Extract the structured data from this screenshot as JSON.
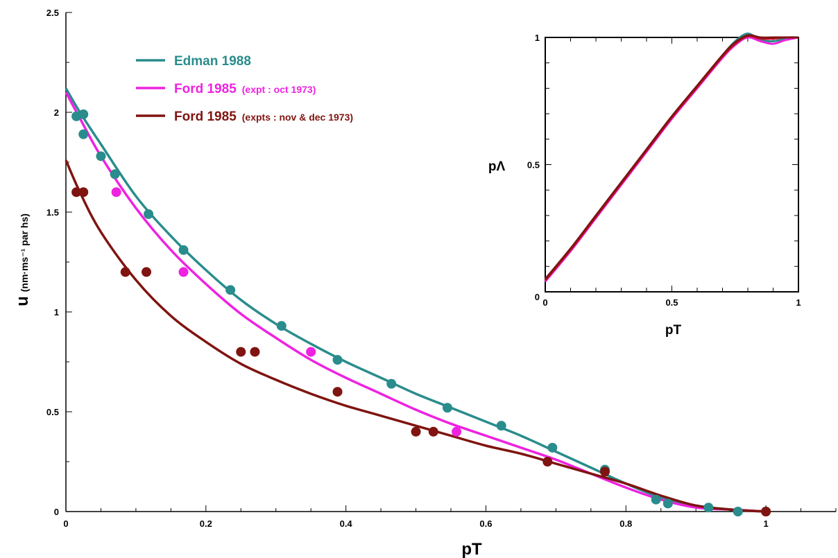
{
  "colors": {
    "edman": "#2a8c8c",
    "ford_oct": "#ee22e0",
    "ford_novdec": "#7f1410",
    "inset_red": "#c8102e",
    "axis": "#000000"
  },
  "chart_data": [
    {
      "type": "scatter",
      "role": "main",
      "xlabel": "pT",
      "ylabel_main": "u",
      "ylabel_units": "(nm·ms⁻¹ par hs)",
      "xlim": [
        0,
        1.1
      ],
      "ylim": [
        0,
        2.5
      ],
      "x_ticks": [
        {
          "value": 0,
          "label": "0"
        },
        {
          "value": 0.2,
          "label": "0.2"
        },
        {
          "value": 0.4,
          "label": "0.4"
        },
        {
          "value": 0.6,
          "label": "0.6"
        },
        {
          "value": 0.8,
          "label": "0.8"
        },
        {
          "value": 1.0,
          "label": "1"
        }
      ],
      "y_ticks": [
        {
          "value": 0,
          "label": "0"
        },
        {
          "value": 0.5,
          "label": "0.5"
        },
        {
          "value": 1.0,
          "label": "1"
        },
        {
          "value": 1.5,
          "label": "1.5"
        },
        {
          "value": 2.0,
          "label": "2"
        },
        {
          "value": 2.5,
          "label": "2.5"
        }
      ],
      "legend": {
        "placement": "top-left",
        "entries": [
          {
            "label": "Edman 1988",
            "note": "",
            "color_key": "edman"
          },
          {
            "label": "Ford 1985",
            "note": "(expt : oct 1973)",
            "color_key": "ford_oct"
          },
          {
            "label": "Ford 1985",
            "note": "(expts : nov & dec 1973)",
            "color_key": "ford_novdec"
          }
        ]
      },
      "series": [
        {
          "name": "Edman 1988",
          "color_key": "edman",
          "curve": {
            "x": [
              0,
              0.02,
              0.05,
              0.1,
              0.15,
              0.2,
              0.25,
              0.3,
              0.35,
              0.4,
              0.45,
              0.5,
              0.55,
              0.6,
              0.65,
              0.7,
              0.75,
              0.8,
              0.85,
              0.9,
              0.95,
              1.0
            ],
            "y": [
              2.12,
              2.0,
              1.84,
              1.58,
              1.38,
              1.21,
              1.06,
              0.94,
              0.84,
              0.75,
              0.67,
              0.59,
              0.52,
              0.45,
              0.38,
              0.3,
              0.22,
              0.14,
              0.07,
              0.03,
              0.01,
              0.0
            ]
          },
          "points": {
            "x": [
              0.015,
              0.025,
              0.025,
              0.05,
              0.07,
              0.118,
              0.168,
              0.235,
              0.308,
              0.388,
              0.465,
              0.545,
              0.622,
              0.695,
              0.77,
              0.843,
              0.86,
              0.918,
              0.96,
              1.0
            ],
            "y": [
              1.98,
              1.99,
              1.89,
              1.78,
              1.69,
              1.49,
              1.31,
              1.11,
              0.93,
              0.76,
              0.64,
              0.52,
              0.43,
              0.32,
              0.21,
              0.06,
              0.04,
              0.02,
              0.0,
              0.0
            ]
          }
        },
        {
          "name": "Ford 1985",
          "color_key": "ford_oct",
          "curve": {
            "x": [
              0,
              0.02,
              0.05,
              0.1,
              0.15,
              0.2,
              0.25,
              0.3,
              0.35,
              0.4,
              0.45,
              0.5,
              0.55,
              0.6,
              0.65,
              0.7,
              0.75,
              0.8,
              0.85,
              0.9,
              0.95,
              1.0
            ],
            "y": [
              2.1,
              1.97,
              1.78,
              1.52,
              1.31,
              1.14,
              0.99,
              0.87,
              0.76,
              0.67,
              0.59,
              0.51,
              0.44,
              0.38,
              0.32,
              0.26,
              0.19,
              0.12,
              0.06,
              0.02,
              0.01,
              0.0
            ]
          },
          "points": {
            "x": [
              0.072,
              0.168,
              0.35,
              0.558
            ],
            "y": [
              1.6,
              1.2,
              0.8,
              0.4
            ]
          }
        },
        {
          "name": "Ford 1985",
          "color_key": "ford_novdec",
          "curve": {
            "x": [
              0,
              0.02,
              0.05,
              0.1,
              0.15,
              0.2,
              0.25,
              0.3,
              0.35,
              0.4,
              0.45,
              0.5,
              0.55,
              0.6,
              0.65,
              0.7,
              0.75,
              0.8,
              0.85,
              0.9,
              0.95,
              1.0
            ],
            "y": [
              1.76,
              1.6,
              1.4,
              1.16,
              0.98,
              0.85,
              0.74,
              0.66,
              0.59,
              0.53,
              0.48,
              0.43,
              0.38,
              0.33,
              0.29,
              0.24,
              0.19,
              0.14,
              0.08,
              0.03,
              0.01,
              0.0
            ]
          },
          "points": {
            "x": [
              0.015,
              0.025,
              0.085,
              0.115,
              0.25,
              0.27,
              0.388,
              0.5,
              0.525,
              0.688,
              0.77,
              1.0
            ],
            "y": [
              1.6,
              1.6,
              1.2,
              1.2,
              0.8,
              0.8,
              0.6,
              0.4,
              0.4,
              0.25,
              0.2,
              0.0
            ]
          }
        }
      ]
    },
    {
      "type": "line",
      "role": "inset",
      "xlabel": "pT",
      "ylabel": "pΛ",
      "xlim": [
        0,
        1
      ],
      "ylim": [
        0,
        1
      ],
      "x_tick_labels": [
        {
          "value": 0,
          "label": "0"
        },
        {
          "value": 0.5,
          "label": "0.5"
        },
        {
          "value": 1,
          "label": "1"
        }
      ],
      "y_tick_labels": [
        {
          "value": 0,
          "label": "0"
        },
        {
          "value": 0.5,
          "label": "0.5"
        },
        {
          "value": 1,
          "label": "1"
        }
      ],
      "series": [
        {
          "color_key": "edman",
          "x": [
            0,
            0.1,
            0.2,
            0.3,
            0.4,
            0.5,
            0.6,
            0.7,
            0.75,
            0.8,
            0.85,
            0.9,
            0.95,
            1.0
          ],
          "y": [
            0.05,
            0.17,
            0.3,
            0.43,
            0.56,
            0.69,
            0.81,
            0.93,
            0.985,
            1.015,
            0.99,
            0.985,
            0.995,
            1.0
          ]
        },
        {
          "color_key": "ford_oct",
          "x": [
            0,
            0.1,
            0.2,
            0.3,
            0.4,
            0.5,
            0.6,
            0.7,
            0.75,
            0.8,
            0.85,
            0.9,
            0.95,
            1.0
          ],
          "y": [
            0.04,
            0.16,
            0.29,
            0.42,
            0.55,
            0.68,
            0.8,
            0.92,
            0.97,
            1.0,
            0.985,
            0.975,
            0.99,
            1.0
          ]
        },
        {
          "color_key": "inset_red",
          "x": [
            0,
            0.1,
            0.2,
            0.3,
            0.4,
            0.5,
            0.6,
            0.7,
            0.75,
            0.8,
            0.85,
            0.9,
            0.95,
            1.0
          ],
          "y": [
            0.045,
            0.165,
            0.295,
            0.425,
            0.555,
            0.685,
            0.805,
            0.925,
            0.975,
            1.005,
            0.995,
            0.995,
            1.0,
            1.0
          ]
        },
        {
          "color_key": "ford_novdec",
          "x": [
            0,
            0.1,
            0.2,
            0.3,
            0.4,
            0.5,
            0.6,
            0.7,
            0.75,
            0.8,
            0.85,
            0.9,
            0.95,
            1.0
          ],
          "y": [
            0.05,
            0.17,
            0.3,
            0.43,
            0.56,
            0.69,
            0.81,
            0.93,
            0.98,
            1.008,
            1.0,
            1.0,
            1.0,
            1.0
          ]
        }
      ]
    }
  ]
}
